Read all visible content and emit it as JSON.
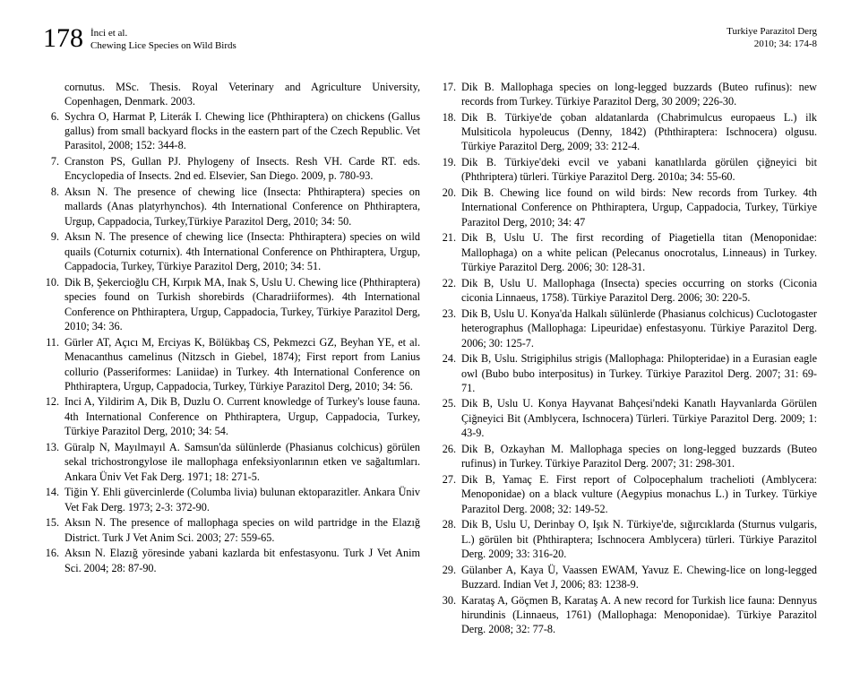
{
  "header": {
    "pageNumber": "178",
    "authorsLine": "İnci et al.",
    "titleLine": "Chewing Lice Species on Wild Birds",
    "journalLine": "Turkiye Parazitol Derg",
    "volumeLine": "2010; 34: 174-8"
  },
  "leftColumn": {
    "continuation": "cornutus. MSc. Thesis. Royal Veterinary and Agriculture University, Copenhagen, Denmark. 2003.",
    "refs": [
      {
        "n": "6.",
        "t": "Sychra O, Harmat P, Literák I. Chewing lice (Phthiraptera) on chickens (Gallus gallus) from small backyard flocks in the eastern part of the Czech Republic. Vet Parasitol, 2008; 152: 344-8."
      },
      {
        "n": "7.",
        "t": "Cranston PS, Gullan PJ. Phylogeny of Insects. Resh VH. Carde RT. eds. Encyclopedia of Insects. 2nd ed. Elsevier, San Diego. 2009, p. 780-93."
      },
      {
        "n": "8.",
        "t": "Aksın N. The presence of chewing lice (Insecta: Phthiraptera) species on mallards (Anas platyrhynchos). 4th International Conference on Phthiraptera, Urgup, Cappadocia, Turkey,Türkiye Parazitol Derg, 2010; 34: 50."
      },
      {
        "n": "9.",
        "t": "Aksın N. The presence of chewing lice (Insecta: Phthiraptera) species on wild quails (Coturnix coturnix). 4th International Conference on Phthiraptera, Urgup, Cappadocia, Turkey, Türkiye Parazitol Derg, 2010; 34: 51."
      },
      {
        "n": "10.",
        "t": "Dik B, Şekercioğlu CH, Kırpık MA, Inak S, Uslu U. Chewing lice (Phthiraptera) species found on Turkish shorebirds (Charadriiformes). 4th International Conference on Phthiraptera, Urgup, Cappadocia, Turkey, Türkiye Parazitol Derg, 2010; 34: 36."
      },
      {
        "n": "11.",
        "t": "Gürler AT, Açıcı M, Erciyas K, Bölükbaş CS, Pekmezci GZ, Beyhan YE, et al. Menacanthus camelinus (Nitzsch in Giebel, 1874); First report from Lanius collurio (Passeriformes: Laniidae) in Turkey. 4th International Conference on Phthiraptera, Urgup, Cappadocia, Turkey, Türkiye Parazitol Derg, 2010; 34: 56."
      },
      {
        "n": "12.",
        "t": "Inci A, Yildirim A, Dik B, Duzlu O. Current knowledge of Turkey's louse fauna. 4th International Conference on Phthiraptera, Urgup, Cappadocia, Turkey, Türkiye Parazitol Derg, 2010; 34: 54."
      },
      {
        "n": "13.",
        "t": "Güralp N, Mayılmayıl A. Samsun'da sülünlerde (Phasianus colchicus) görülen sekal trichostrongylose ile mallophaga enfeksiyonlarının etken ve sağaltımları. Ankara Üniv Vet Fak Derg. 1971; 18: 271-5."
      },
      {
        "n": "14.",
        "t": "Tiğin Y. Ehli güvercinlerde (Columba livia) bulunan ektoparazitler. Ankara Üniv Vet Fak Derg. 1973; 2-3: 372-90."
      },
      {
        "n": "15.",
        "t": "Aksın N. The presence of mallophaga species on wild partridge in the Elazığ District. Turk J Vet Anim Sci. 2003; 27: 559-65."
      },
      {
        "n": "16.",
        "t": "Aksın N. Elazığ yöresinde yabani kazlarda bit enfestasyonu. Turk J Vet Anim Sci. 2004; 28: 87-90."
      }
    ]
  },
  "rightColumn": {
    "refs": [
      {
        "n": "17.",
        "t": "Dik B. Mallophaga species on long-legged buzzards (Buteo rufinus): new records from Turkey. Türkiye Parazitol Derg, 30 2009; 226-30."
      },
      {
        "n": "18.",
        "t": "Dik B. Türkiye'de çoban aldatanlarda (Chabrimulcus europaeus L.) ilk Mulsiticola hypoleucus (Denny, 1842) (Pththiraptera: Ischnocera) olgusu. Türkiye Parazitol Derg, 2009; 33: 212-4."
      },
      {
        "n": "19.",
        "t": "Dik B. Türkiye'deki evcil ve yabani kanatlılarda görülen çiğneyici bit (Phthriptera) türleri. Türkiye Parazitol Derg. 2010a; 34: 55-60."
      },
      {
        "n": "20.",
        "t": "Dik B. Chewing lice found on wild birds: New records from Turkey. 4th International Conference on Phthiraptera, Urgup, Cappadocia, Turkey, Türkiye Parazitol Derg, 2010; 34: 47"
      },
      {
        "n": "21.",
        "t": "Dik B, Uslu U. The first recording of Piagetiella titan (Menoponidae: Mallophaga) on a white pelican (Pelecanus onocrotalus, Linneaus) in Turkey. Türkiye Parazitol Derg. 2006; 30: 128-31."
      },
      {
        "n": "22.",
        "t": "Dik B, Uslu U. Mallophaga (Insecta) species occurring on storks (Ciconia ciconia Linnaeus, 1758). Türkiye Parazitol Derg. 2006; 30: 220-5."
      },
      {
        "n": "23.",
        "t": "Dik B, Uslu U. Konya'da Halkalı sülünlerde (Phasianus colchicus) Cuclotogaster heterographus (Mallophaga: Lipeuridae) enfestasyonu. Türkiye Parazitol Derg. 2006; 30: 125-7."
      },
      {
        "n": "24.",
        "t": "Dik B, Uslu. Strigiphilus strigis (Mallophaga: Philopteridae) in a Eurasian eagle owl (Bubo bubo interpositus) in Turkey. Türkiye Parazitol Derg. 2007; 31: 69-71."
      },
      {
        "n": "25.",
        "t": "Dik B, Uslu U. Konya Hayvanat Bahçesi'ndeki Kanatlı Hayvanlarda Görülen Çiğneyici Bit (Amblycera, Ischnocera) Türleri. Türkiye Parazitol Derg. 2009; 1: 43-9."
      },
      {
        "n": "26.",
        "t": "Dik B, Ozkayhan M. Mallophaga species on long-legged buzzards (Buteo rufinus) in Turkey. Türkiye Parazitol Derg. 2007; 31: 298-301."
      },
      {
        "n": "27.",
        "t": "Dik B, Yamaç E. First report of Colpocephalum trachelioti (Amblycera: Menoponidae) on a black vulture (Aegypius monachus L.) in Turkey. Türkiye Parazitol Derg. 2008; 32: 149-52."
      },
      {
        "n": "28.",
        "t": "Dik B, Uslu U, Derinbay O, Işık N. Türkiye'de, sığırcıklarda (Sturnus vulgaris, L.) görülen bit (Phthiraptera; Ischnocera Amblycera) türleri. Türkiye Parazitol Derg. 2009; 33: 316-20."
      },
      {
        "n": "29.",
        "t": "Gülanber A, Kaya Ü, Vaassen EWAM, Yavuz E. Chewing-lice on long-legged Buzzard. Indian Vet J, 2006; 83: 1238-9."
      },
      {
        "n": "30.",
        "t": "Karataş A, Göçmen B, Karataş A. A new record for Turkish lice fauna: Dennyus hirundinis (Linnaeus, 1761) (Mallophaga: Menoponidae). Türkiye Parazitol Derg. 2008; 32: 77-8."
      }
    ]
  }
}
